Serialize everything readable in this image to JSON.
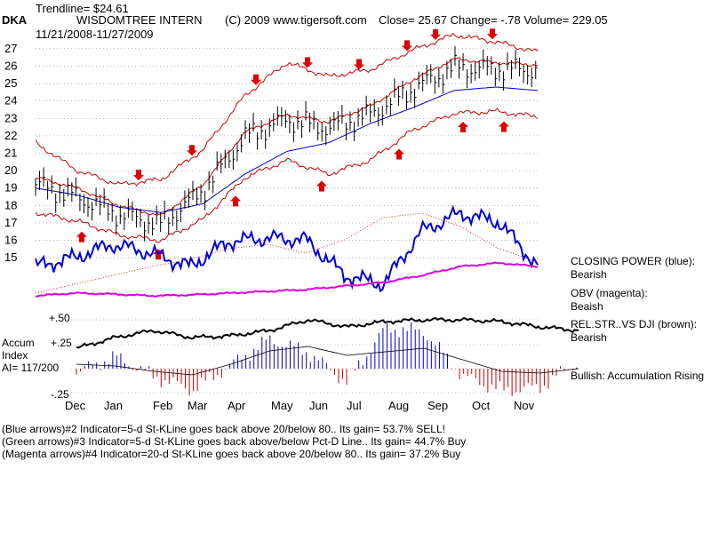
{
  "header": {
    "trendline": "Trendline= $24.61",
    "ticker": "DKA",
    "company": "WISDOMTREE INTERN",
    "source": "(C) 2009 www.tigersoft.com",
    "stats": "Close=  25.67  Change= -.78 Volume= 229.05",
    "date_range": "11/21/2008-11/27/2009"
  },
  "lower_panel": {
    "accum_title": "Accum",
    "accum_sub": "Index",
    "ai_value": "AI= 117/200",
    "level_top": "+.50",
    "level_mid": "+.25",
    "level_bot": "-.25"
  },
  "side_notes": [
    {
      "label": "CLOSING POWER (blue):",
      "value": "Bearish"
    },
    {
      "label": "OBV (magenta):",
      "value": "Beaish"
    },
    {
      "label": "REL.STR..VS DJI (brown):",
      "value": "Bearish"
    }
  ],
  "bullish_note": "Bullish: Accumulation Rising",
  "legend_lines": [
    "(Blue arrows)#2 Indicator=5-d St-KLine goes back above 20/below 80.. Its gain= 53.7% SELL!",
    "(Green arrows)#3 Indicator=5-d St-KLine goes back above/below Pct-D Line.. Its gain= 44.7% Buy",
    "(Magenta arrows)#4 Indicator=20-d St-KLine goes back above 20/below 80.. Its gain= 37.2% Buy"
  ],
  "colors": {
    "price_bars": "#000000",
    "bands": "#cc0000",
    "ma": "#0000cc",
    "closing_power": "#0000dd",
    "obv": "#dd00dd",
    "arrows": "#dd0000",
    "accum_pos": "#0000cc",
    "accum_neg": "#cc0000",
    "grid": "#888888"
  },
  "chart_data": {
    "type": "line",
    "x_tick_labels": [
      "Dec",
      "Jan",
      "Feb",
      "Mar",
      "Apr",
      "May",
      "Jun",
      "Jul",
      "Aug",
      "Sep",
      "Oct",
      "Nov"
    ],
    "y_tick_labels": [
      15,
      16,
      17,
      18,
      19,
      20,
      21,
      22,
      23,
      24,
      25,
      26,
      27
    ],
    "ylim": [
      14.5,
      27.5
    ],
    "grid": true,
    "price_close_monthly": [
      19.2,
      18.6,
      17.6,
      17.0,
      18.8,
      21.8,
      22.8,
      22.4,
      23.3,
      24.8,
      26.0,
      25.8,
      25.67
    ],
    "upper_band_monthly": [
      21.6,
      20.0,
      19.2,
      19.5,
      21.2,
      24.3,
      26.2,
      25.4,
      25.8,
      26.9,
      27.8,
      27.4,
      26.8
    ],
    "lower_band_monthly": [
      17.6,
      17.1,
      16.3,
      16.0,
      17.2,
      19.6,
      20.6,
      19.8,
      20.6,
      22.3,
      23.3,
      23.4,
      23.1
    ],
    "ma_monthly": [
      19.0,
      18.6,
      17.9,
      17.6,
      18.1,
      19.8,
      21.1,
      21.6,
      22.7,
      23.6,
      24.6,
      24.8,
      24.6
    ],
    "sell_arrow_months": [
      "Jan",
      "Mar",
      "May",
      "Jul",
      "Aug",
      "Aug",
      "Sep",
      "Oct"
    ],
    "buy_arrow_months": [
      "Dec",
      "Feb",
      "Apr",
      "Jun",
      "Aug",
      "Sep",
      "Oct"
    ]
  }
}
